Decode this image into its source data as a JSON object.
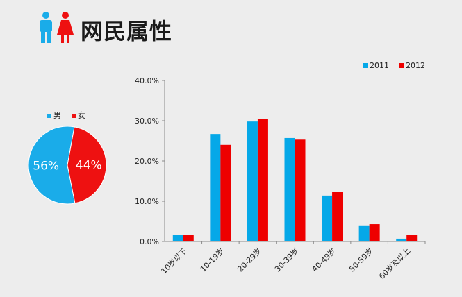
{
  "header": {
    "title": "网民属性"
  },
  "colors": {
    "male": "#1aace9",
    "female": "#ee1111",
    "s2011": "#05a8e8",
    "s2012": "#ee0000"
  },
  "chart_data": [
    {
      "type": "pie",
      "categories": [
        "男",
        "女"
      ],
      "values": [
        56,
        44
      ],
      "labels": [
        "56%",
        "44%"
      ],
      "legend": "top"
    },
    {
      "type": "bar",
      "categories": [
        "10岁以下",
        "10-19岁",
        "20-29岁",
        "30-39岁",
        "40-49岁",
        "50-59岁",
        "60岁及以上"
      ],
      "series": [
        {
          "name": "2011",
          "values": [
            1.7,
            26.7,
            29.8,
            25.7,
            11.4,
            4.0,
            0.7
          ]
        },
        {
          "name": "2012",
          "values": [
            1.7,
            24.0,
            30.4,
            25.3,
            12.4,
            4.3,
            1.7
          ]
        }
      ],
      "ylim": [
        0,
        40
      ],
      "yticks": [
        "0.0%",
        "10.0%",
        "20.0%",
        "30.0%",
        "40.0%"
      ],
      "legend": "top-right",
      "grid": false
    }
  ]
}
